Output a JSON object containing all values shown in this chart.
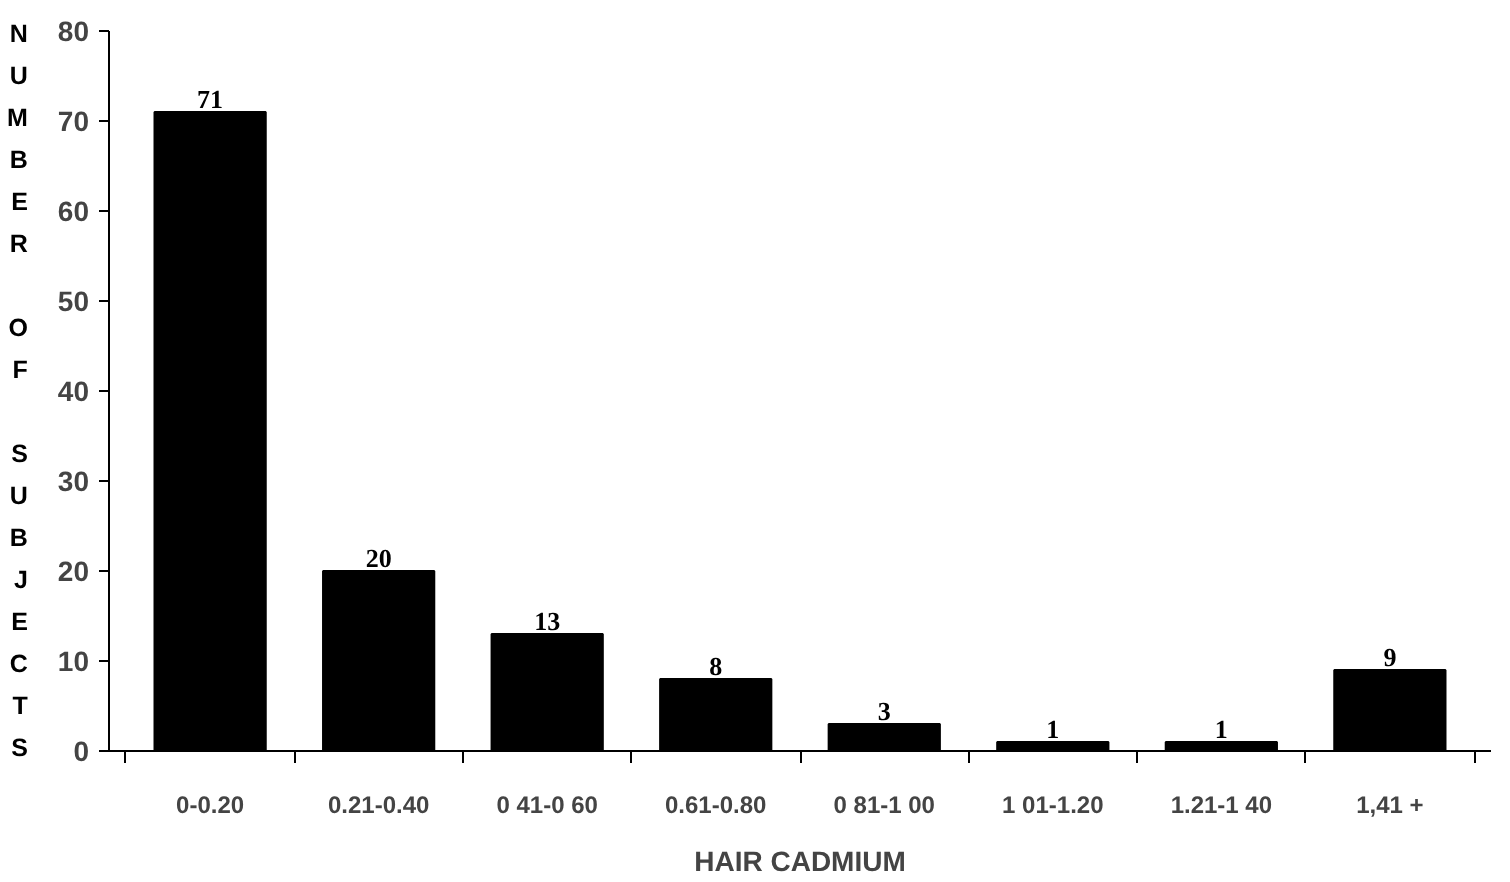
{
  "chart_data": {
    "type": "bar",
    "xlabel": "HAIR CADMIUM",
    "ylabel": "NUMBER OF SUBJECTS",
    "categories": [
      "0-0.20",
      "0.21-0.40",
      "0 41-0 60",
      "0.61-0.80",
      "0 81-1 00",
      "1 01-1.20",
      "1.21-1 40",
      "1,41 +"
    ],
    "values": [
      71,
      20,
      13,
      8,
      3,
      1,
      1,
      9
    ],
    "color": "#000000",
    "ylim": [
      0,
      80
    ],
    "yticks": [
      0,
      10,
      20,
      30,
      40,
      50,
      60,
      70,
      80
    ],
    "grid": false,
    "data_labels": true
  }
}
